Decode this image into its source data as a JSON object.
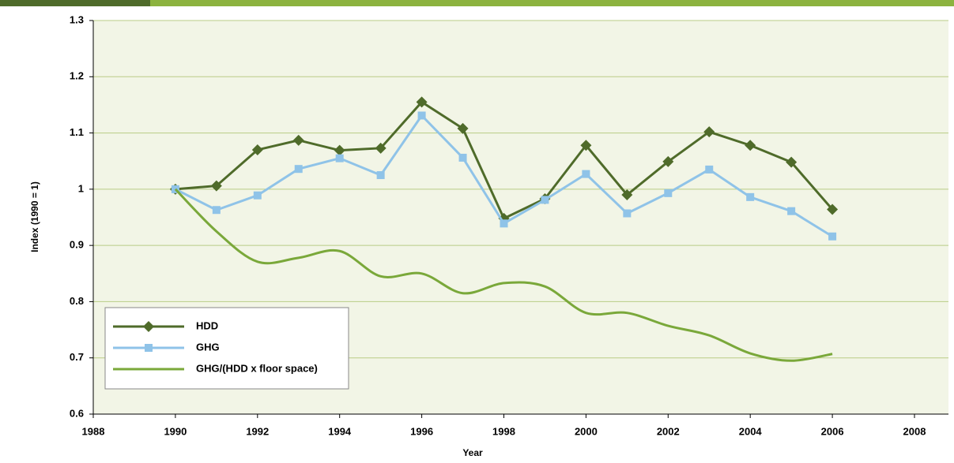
{
  "chart_data": {
    "type": "line",
    "x": [
      1990,
      1991,
      1992,
      1993,
      1994,
      1995,
      1996,
      1997,
      1998,
      1999,
      2000,
      2001,
      2002,
      2003,
      2004,
      2005,
      2006
    ],
    "series": [
      {
        "name": "HDD",
        "color": "#4f6b2a",
        "marker": "diamond",
        "values": [
          1.0,
          1.006,
          1.07,
          1.087,
          1.069,
          1.073,
          1.155,
          1.108,
          0.948,
          0.983,
          1.078,
          0.99,
          1.049,
          1.102,
          1.078,
          1.048,
          0.964
        ]
      },
      {
        "name": "GHG",
        "color": "#8fc3e8",
        "marker": "square",
        "values": [
          1.0,
          0.963,
          0.989,
          1.036,
          1.055,
          1.025,
          1.131,
          1.056,
          0.939,
          0.981,
          1.027,
          0.957,
          0.993,
          1.035,
          0.986,
          0.961,
          0.916
        ]
      },
      {
        "name": "GHG/(HDD x floor space)",
        "color": "#7aa83a",
        "smooth": true,
        "values": [
          1.0,
          0.925,
          0.871,
          0.878,
          0.89,
          0.845,
          0.85,
          0.815,
          0.833,
          0.827,
          0.78,
          0.78,
          0.757,
          0.74,
          0.708,
          0.695,
          0.707
        ]
      }
    ],
    "xlabel": "Year",
    "ylabel": "Index (1990 = 1)",
    "xlim": [
      1988,
      2008
    ],
    "xticks": [
      1988,
      1990,
      1992,
      1994,
      1996,
      1998,
      2000,
      2002,
      2004,
      2006,
      2008
    ],
    "ylim": [
      0.6,
      1.3
    ],
    "yticks": [
      0.6,
      0.7,
      0.8,
      0.9,
      1,
      1.1,
      1.2,
      1.3
    ],
    "grid": true,
    "legend": "lower left"
  }
}
